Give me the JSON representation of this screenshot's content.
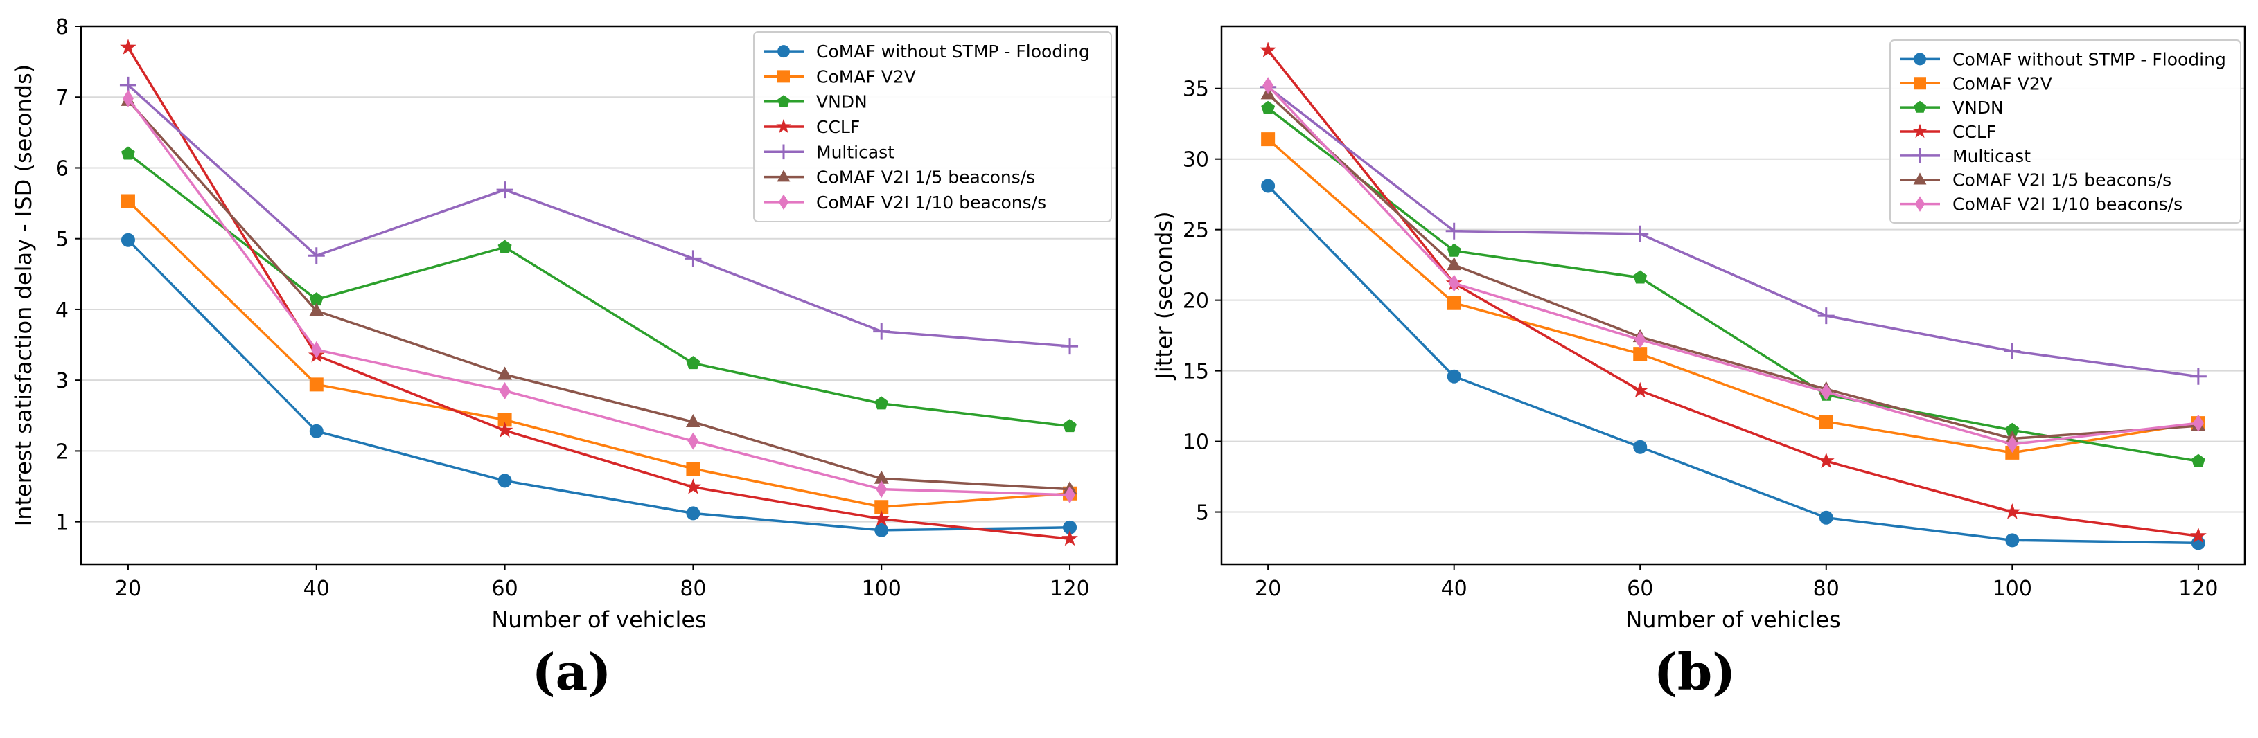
{
  "captions": {
    "a": "(a)",
    "b": "(b)"
  },
  "series_styles": [
    {
      "name": "CoMAF without STMP - Flooding",
      "color": "#1f77b4",
      "marker": "circle"
    },
    {
      "name": "CoMAF V2V",
      "color": "#ff7f0e",
      "marker": "square"
    },
    {
      "name": "VNDN",
      "color": "#2ca02c",
      "marker": "pentagon"
    },
    {
      "name": "CCLF",
      "color": "#d62728",
      "marker": "star"
    },
    {
      "name": "Multicast",
      "color": "#9467bd",
      "marker": "plus"
    },
    {
      "name": "CoMAF V2I 1/5 beacons/s",
      "color": "#8c564b",
      "marker": "triangle"
    },
    {
      "name": "CoMAF V2I 1/10 beacons/s",
      "color": "#e377c2",
      "marker": "diamond"
    }
  ],
  "chart_data": [
    {
      "type": "line",
      "title": "",
      "xlabel": "Number of vehicles",
      "ylabel": "Interest satisfaction delay - ISD  (seconds)",
      "x": [
        20,
        40,
        60,
        80,
        100,
        120
      ],
      "xticks": [
        "20",
        "40",
        "60",
        "80",
        "100",
        "120"
      ],
      "yticks": [
        "1",
        "2",
        "3",
        "4",
        "5",
        "6",
        "7",
        "8"
      ],
      "xlim": [
        15,
        125
      ],
      "ylim": [
        0.4,
        8
      ],
      "grid": "horizontal",
      "legend": "top-right",
      "series": [
        {
          "name": "CoMAF without STMP - Flooding",
          "values": [
            4.98,
            2.28,
            1.58,
            1.12,
            0.88,
            0.92
          ]
        },
        {
          "name": "CoMAF V2V",
          "values": [
            5.53,
            2.94,
            2.44,
            1.75,
            1.21,
            1.4
          ]
        },
        {
          "name": "VNDN",
          "values": [
            6.2,
            4.14,
            4.88,
            3.24,
            2.67,
            2.35
          ]
        },
        {
          "name": "CCLF",
          "values": [
            7.7,
            3.35,
            2.29,
            1.49,
            1.04,
            0.76
          ]
        },
        {
          "name": "Multicast",
          "values": [
            7.17,
            4.76,
            5.69,
            4.72,
            3.69,
            3.48
          ]
        },
        {
          "name": "CoMAF V2I 1/5 beacons/s",
          "values": [
            6.95,
            3.98,
            3.08,
            2.41,
            1.61,
            1.46
          ]
        },
        {
          "name": "CoMAF V2I 1/10 beacons/s",
          "values": [
            6.98,
            3.43,
            2.85,
            2.14,
            1.46,
            1.38
          ]
        }
      ]
    },
    {
      "type": "line",
      "title": "",
      "xlabel": "Number of vehicles",
      "ylabel": "Jitter (seconds)",
      "x": [
        20,
        40,
        60,
        80,
        100,
        120
      ],
      "xticks": [
        "20",
        "40",
        "60",
        "80",
        "100",
        "120"
      ],
      "yticks": [
        "5",
        "10",
        "15",
        "20",
        "25",
        "30",
        "35"
      ],
      "xlim": [
        15,
        125
      ],
      "ylim": [
        1.3,
        39.4
      ],
      "grid": "horizontal",
      "legend": "top-right",
      "series": [
        {
          "name": "CoMAF without STMP - Flooding",
          "values": [
            28.1,
            14.6,
            9.6,
            4.6,
            3.0,
            2.8
          ]
        },
        {
          "name": "CoMAF V2V",
          "values": [
            31.4,
            19.8,
            16.2,
            11.4,
            9.2,
            11.3
          ]
        },
        {
          "name": "VNDN",
          "values": [
            33.6,
            23.5,
            21.6,
            13.3,
            10.8,
            8.6
          ]
        },
        {
          "name": "CCLF",
          "values": [
            37.7,
            21.2,
            13.6,
            8.6,
            5.0,
            3.3
          ]
        },
        {
          "name": "Multicast",
          "values": [
            35.1,
            24.9,
            24.7,
            18.9,
            16.4,
            14.6
          ]
        },
        {
          "name": "CoMAF V2I 1/5 beacons/s",
          "values": [
            34.6,
            22.5,
            17.4,
            13.7,
            10.2,
            11.1
          ]
        },
        {
          "name": "CoMAF V2I 1/10 beacons/s",
          "values": [
            35.2,
            21.2,
            17.2,
            13.5,
            9.8,
            11.3
          ]
        }
      ]
    }
  ]
}
